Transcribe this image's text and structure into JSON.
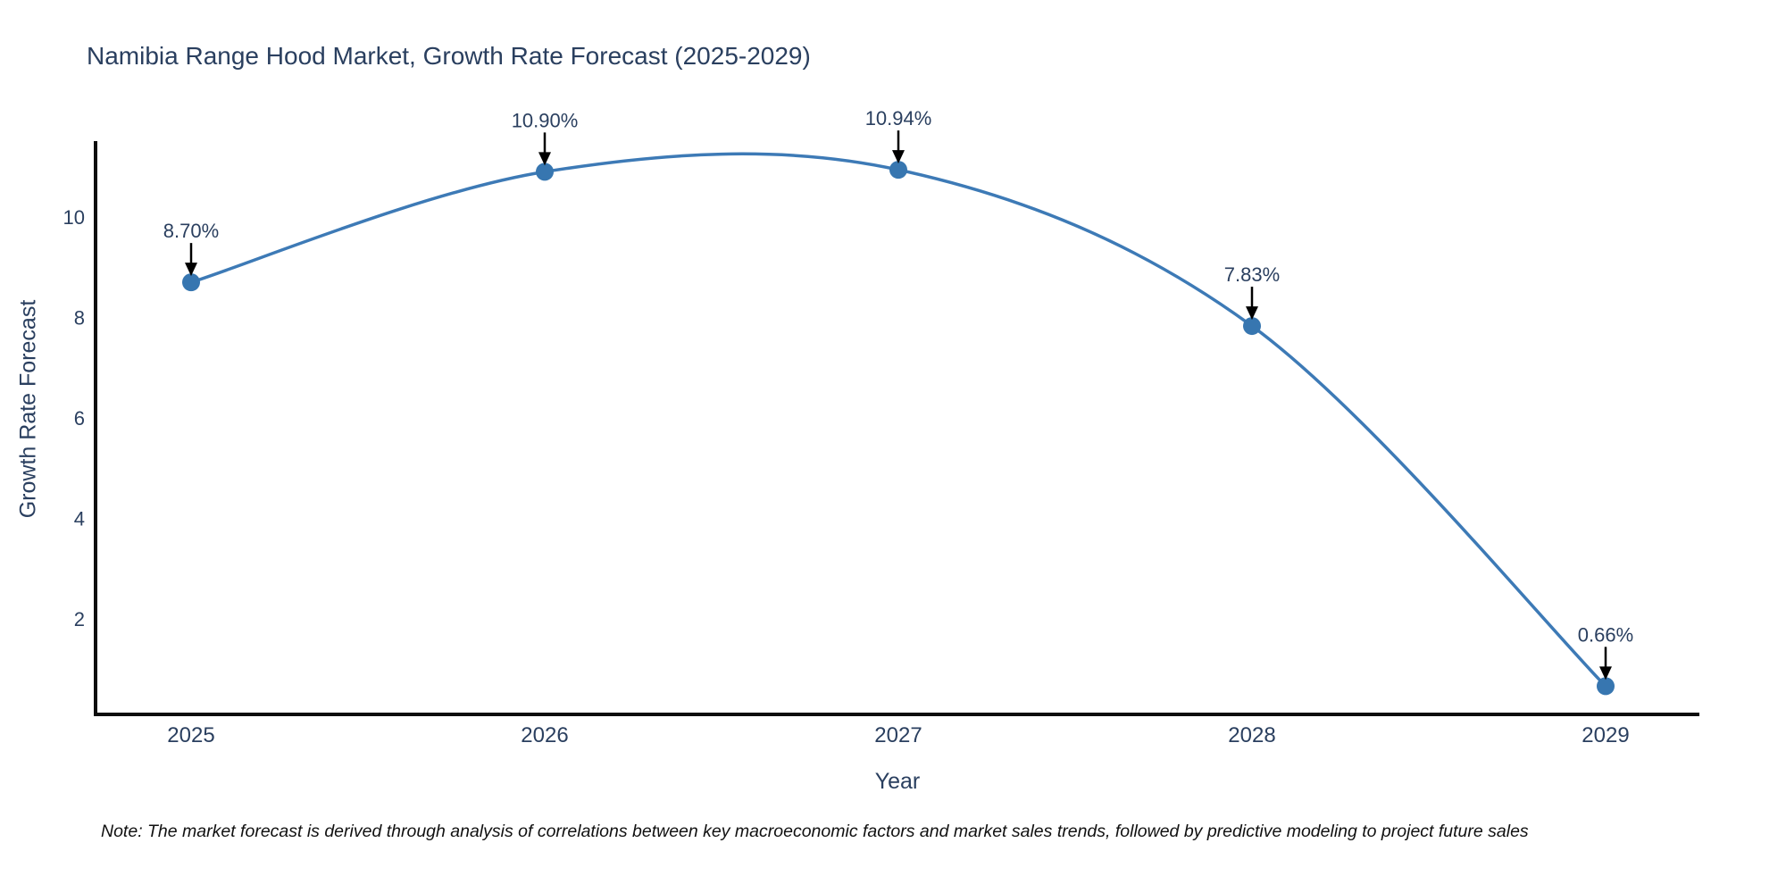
{
  "title": "Namibia Range Hood Market, Growth Rate Forecast (2025-2029)",
  "note": "Note: The market forecast is derived through analysis of correlations between key macroeconomic factors and market sales trends, followed by predictive modeling to project future sales",
  "chart_data": {
    "type": "line",
    "title": "Namibia Range Hood Market, Growth Rate Forecast (2025-2029)",
    "xlabel": "Year",
    "ylabel": "Growth Rate Forecast",
    "categories": [
      "2025",
      "2026",
      "2027",
      "2028",
      "2029"
    ],
    "values": [
      8.7,
      10.9,
      10.94,
      7.83,
      0.66
    ],
    "point_labels": [
      "8.70%",
      "10.90%",
      "10.94%",
      "7.83%",
      "0.66%"
    ],
    "yticks": [
      2,
      4,
      6,
      8,
      10
    ],
    "ylim": [
      0.1,
      11.5
    ],
    "grid": false,
    "legend_position": "none",
    "line_color": "#3d7ab6",
    "marker_color": "#3776b0",
    "axis_color": "#0d0d0d",
    "text_color": "#2a3f5f",
    "annotation_arrow_color": "#000000",
    "annotation_style": "value label above point with downward arrow"
  }
}
